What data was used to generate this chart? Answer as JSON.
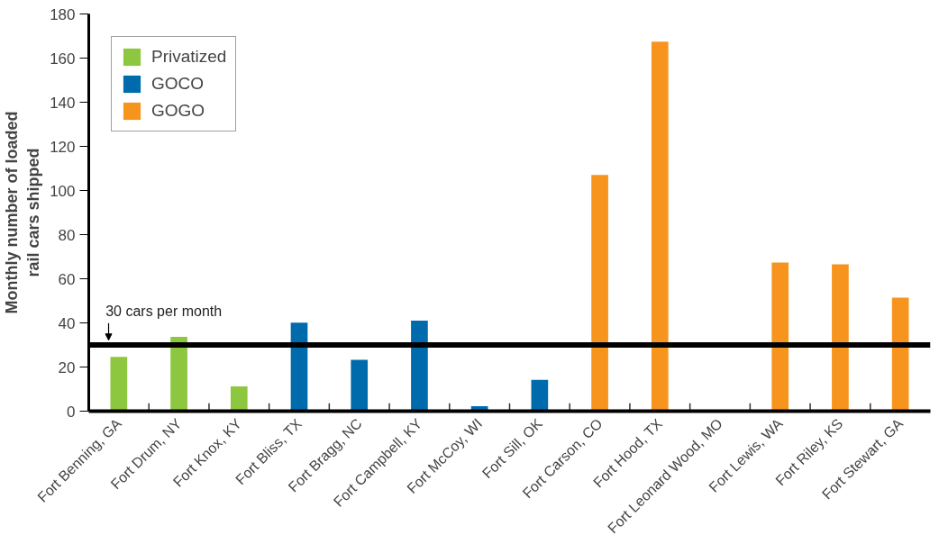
{
  "chart_data": {
    "type": "bar",
    "ylabel": "Monthly number of loaded\nrail cars shipped",
    "categories": [
      "Fort Benning, GA",
      "Fort Drum, NY",
      "Fort Knox, KY",
      "Fort Bliss, TX",
      "Fort Bragg, NC",
      "Fort Campbell, KY",
      "Fort McCoy, WI",
      "Fort Sill, OK",
      "Fort Carson, CO",
      "Fort Hood, TX",
      "Fort Leonard Wood, MO",
      "Fort Lewis, WA",
      "Fort Riley, KS",
      "Fort Stewart, GA"
    ],
    "series": [
      {
        "name": "Privatized",
        "color": "#8dc63f",
        "values": [
          24.6,
          33.7,
          11.2,
          null,
          null,
          null,
          null,
          null,
          null,
          null,
          null,
          null,
          null,
          null
        ]
      },
      {
        "name": "GOCO",
        "color": "#006bac",
        "values": [
          null,
          null,
          null,
          40.1,
          23.3,
          41,
          2.2,
          14.2,
          null,
          null,
          null,
          null,
          null,
          null
        ]
      },
      {
        "name": "GOGO",
        "color": "#f7941d",
        "values": [
          null,
          null,
          null,
          null,
          null,
          null,
          null,
          null,
          107,
          167.5,
          null,
          67.3,
          66.5,
          51.4
        ]
      }
    ],
    "ylim": [
      0,
      180
    ],
    "yticks": [
      0,
      20,
      40,
      60,
      80,
      100,
      120,
      140,
      160,
      180
    ],
    "ref_lines": [
      {
        "axis": "y",
        "value": 30,
        "label": "30 cars per month",
        "color": "#000000"
      }
    ],
    "legend": "top left",
    "grid": false
  }
}
